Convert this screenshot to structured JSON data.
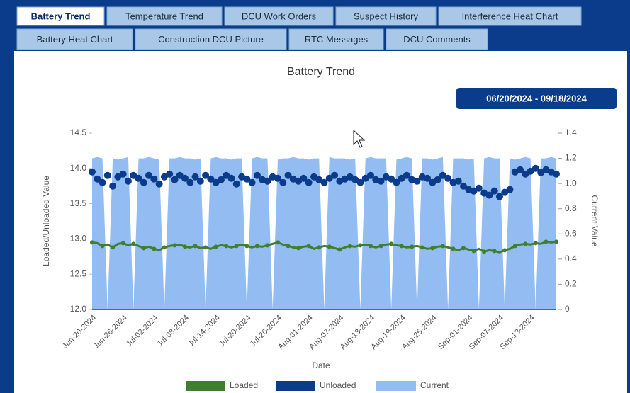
{
  "tabs": [
    "Battery Trend",
    "Temperature Trend",
    "DCU Work Orders",
    "Suspect History",
    "Interference Heat Chart",
    "Battery Heat Chart",
    "Construction DCU Picture",
    "RTC Messages",
    "DCU Comments"
  ],
  "date_range": "06/20/2024 - 09/18/2024",
  "chart_data": {
    "type": "line",
    "title": "Battery Trend",
    "xlabel": "Date",
    "ylabel": "Loaded/Unloaded Value",
    "y2label": "Current Value",
    "categories": [
      "Jun-20-2024",
      null,
      null,
      null,
      null,
      null,
      "Jun-26-2024",
      null,
      null,
      null,
      null,
      null,
      "Jul-02-2024",
      null,
      null,
      null,
      null,
      null,
      "Jul-08-2024",
      null,
      null,
      null,
      null,
      null,
      "Jul-14-2024",
      null,
      null,
      null,
      null,
      null,
      "Jul-20-2024",
      null,
      null,
      null,
      null,
      null,
      "Jul-26-2024",
      null,
      null,
      null,
      null,
      null,
      "Aug-01-2024",
      null,
      null,
      null,
      null,
      null,
      "Aug-07-2024",
      null,
      null,
      null,
      null,
      null,
      "Aug-13-2024",
      null,
      null,
      null,
      null,
      null,
      "Aug-19-2024",
      null,
      null,
      null,
      null,
      null,
      "Aug-25-2024",
      null,
      null,
      null,
      null,
      null,
      null,
      "Sep-01-2024",
      null,
      null,
      null,
      null,
      null,
      "Sep-07-2024",
      null,
      null,
      null,
      null,
      null,
      "Sep-13-2024",
      null,
      null,
      null,
      null,
      null
    ],
    "ylim": [
      12,
      14.5
    ],
    "yticks": [
      {
        "value": 12,
        "label": "12.0"
      },
      12.5,
      {
        "value": 13,
        "label": "13.0"
      },
      13.5,
      {
        "value": 14,
        "label": "14.0"
      },
      14.5
    ],
    "y2lim": [
      0,
      1.4
    ],
    "y2ticks": [
      0,
      0.2,
      0.4,
      0.6,
      0.8,
      {
        "value": 1,
        "label": "1.0"
      },
      1.2,
      1.4
    ],
    "grid": false,
    "legend": "bottom",
    "series": [
      {
        "name": "Current",
        "type": "area",
        "axis": "y2",
        "color": "#93bdf2",
        "values": [
          1.2,
          1.21,
          1.2,
          0,
          1.2,
          1.19,
          1.2,
          1.21,
          0,
          1.2,
          1.2,
          1.21,
          1.2,
          1.19,
          0,
          1.2,
          1.2,
          1.21,
          1.2,
          1.2,
          1.19,
          1.2,
          0,
          1.2,
          1.21,
          1.2,
          1.2,
          1.19,
          1.2,
          1.2,
          0,
          1.2,
          1.21,
          1.2,
          1.2,
          0,
          1.19,
          1.2,
          1.2,
          1.21,
          1.2,
          1.2,
          1.19,
          1.2,
          1.2,
          0,
          1.21,
          1.2,
          1.2,
          1.2,
          1.19,
          1.2,
          0,
          1.2,
          1.21,
          1.2,
          1.2,
          1.2,
          0,
          1.19,
          1.2,
          1.21,
          1.2,
          0,
          1.2,
          1.2,
          1.19,
          1.2,
          1.21,
          0,
          1.2,
          1.2,
          1.2,
          1.19,
          1.2,
          0,
          1.2,
          1.21,
          1.2,
          1.2,
          0,
          1.2,
          1.19,
          1.2,
          1.21,
          1.2,
          0,
          1.2,
          1.2,
          1.21,
          1.2
        ]
      },
      {
        "name": "Unloaded",
        "type": "scatter",
        "color": "#0b3c8c",
        "values": [
          13.95,
          13.85,
          13.8,
          13.9,
          13.75,
          13.88,
          13.92,
          13.82,
          13.9,
          13.86,
          13.8,
          13.9,
          13.85,
          13.78,
          13.88,
          13.92,
          13.84,
          13.9,
          13.86,
          13.8,
          13.88,
          13.82,
          13.9,
          13.85,
          13.8,
          13.84,
          13.9,
          13.86,
          13.78,
          13.88,
          13.85,
          13.8,
          13.9,
          13.84,
          13.82,
          13.88,
          13.86,
          13.8,
          13.9,
          13.85,
          13.82,
          13.86,
          13.8,
          13.88,
          13.84,
          13.8,
          13.86,
          13.9,
          13.82,
          13.85,
          13.88,
          13.84,
          13.8,
          13.86,
          13.9,
          13.84,
          13.82,
          13.88,
          13.85,
          13.8,
          13.86,
          13.9,
          13.84,
          13.82,
          13.88,
          13.86,
          13.8,
          13.84,
          13.9,
          13.86,
          13.8,
          13.82,
          13.75,
          13.7,
          13.68,
          13.72,
          13.65,
          13.62,
          13.68,
          13.6,
          13.66,
          13.7,
          13.95,
          13.98,
          13.92,
          13.96,
          14.0,
          13.94,
          13.98,
          13.95,
          13.92
        ]
      },
      {
        "name": "Loaded",
        "type": "line",
        "color": "#3f7f2f",
        "values": [
          12.95,
          12.94,
          12.9,
          12.92,
          12.88,
          12.93,
          12.94,
          12.91,
          12.93,
          12.9,
          12.87,
          12.89,
          12.86,
          12.84,
          12.88,
          12.9,
          12.91,
          12.92,
          12.89,
          12.88,
          12.9,
          12.87,
          12.88,
          12.86,
          12.89,
          12.91,
          12.9,
          12.88,
          12.9,
          12.92,
          12.9,
          12.88,
          12.9,
          12.89,
          12.91,
          12.93,
          12.95,
          12.92,
          12.9,
          12.88,
          12.87,
          12.89,
          12.9,
          12.86,
          12.88,
          12.9,
          12.89,
          12.87,
          12.85,
          12.88,
          12.9,
          12.89,
          12.91,
          12.92,
          12.9,
          12.88,
          12.9,
          12.92,
          12.93,
          12.91,
          12.9,
          12.88,
          12.89,
          12.9,
          12.88,
          12.86,
          12.87,
          12.89,
          12.9,
          12.88,
          12.86,
          12.84,
          12.87,
          12.85,
          12.83,
          12.86,
          12.82,
          12.84,
          12.83,
          12.81,
          12.84,
          12.86,
          12.9,
          12.92,
          12.93,
          12.92,
          12.94,
          12.93,
          12.96,
          12.95,
          12.96
        ]
      }
    ]
  }
}
